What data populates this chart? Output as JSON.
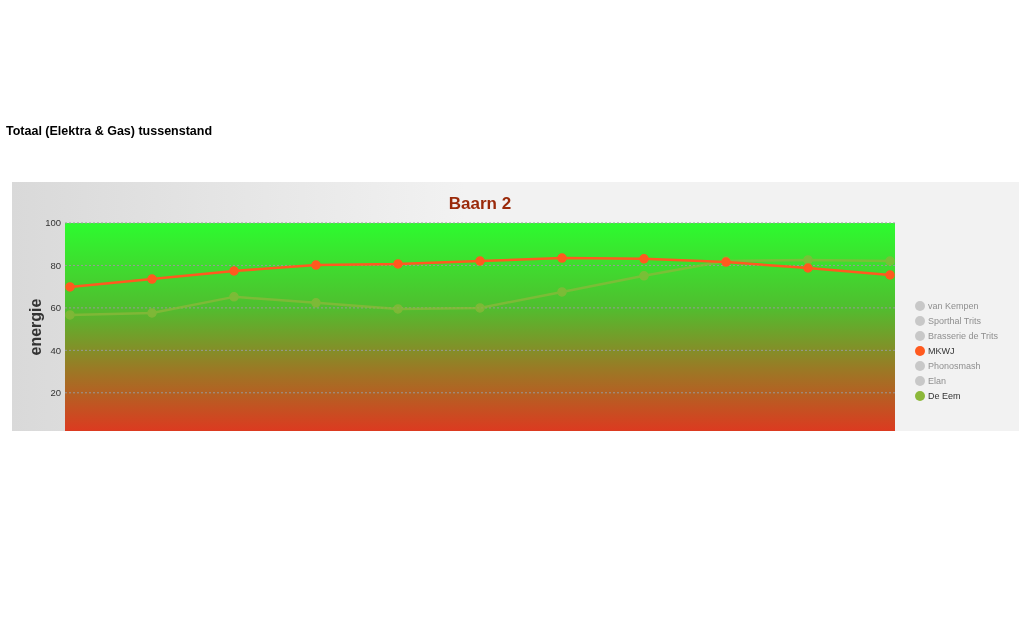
{
  "chart_data": {
    "type": "line",
    "title": "Baarn 2",
    "annotations": [
      "Totaal (Elektra & Gas) tussenstand"
    ],
    "ylabel": "energie",
    "categories": [
      null,
      null,
      null,
      null,
      null,
      null,
      null,
      null,
      null,
      null,
      null
    ],
    "ylim": [
      2,
      100
    ],
    "yticks": [
      20,
      40,
      60,
      80,
      100
    ],
    "grid": "y",
    "legend": "right",
    "marker": "circle",
    "line_style": "solid",
    "series": [
      {
        "name": "van Kempen",
        "color": "#c8c8c8",
        "values": [
          null,
          null,
          null,
          null,
          null,
          null,
          null,
          null,
          null,
          null,
          null
        ]
      },
      {
        "name": "Sporthal Trits",
        "color": "#c8c8c8",
        "values": [
          null,
          null,
          null,
          null,
          null,
          null,
          null,
          null,
          null,
          null,
          null
        ]
      },
      {
        "name": "Brasserie de Trits",
        "color": "#c8c8c8",
        "values": [
          null,
          null,
          null,
          null,
          null,
          null,
          null,
          null,
          null,
          null,
          null
        ]
      },
      {
        "name": "MKWJ",
        "color": "#ff5a1f",
        "values": [
          69.9,
          73.6,
          77.4,
          80.2,
          80.7,
          82.1,
          83.5,
          83.1,
          81.6,
          78.8,
          75.5
        ]
      },
      {
        "name": "Phonosmash",
        "color": "#c8c8c8",
        "values": [
          null,
          null,
          null,
          null,
          null,
          null,
          null,
          null,
          null,
          null,
          null
        ]
      },
      {
        "name": "Elan",
        "color": "#c8c8c8",
        "values": [
          null,
          null,
          null,
          null,
          null,
          null,
          null,
          null,
          null,
          null,
          null
        ]
      },
      {
        "name": "De Eem",
        "color": "#8cb83a",
        "values": [
          56.7,
          57.6,
          65.2,
          62.4,
          59.5,
          60.0,
          67.5,
          75.1,
          82.1,
          82.6,
          82.1
        ]
      }
    ]
  }
}
